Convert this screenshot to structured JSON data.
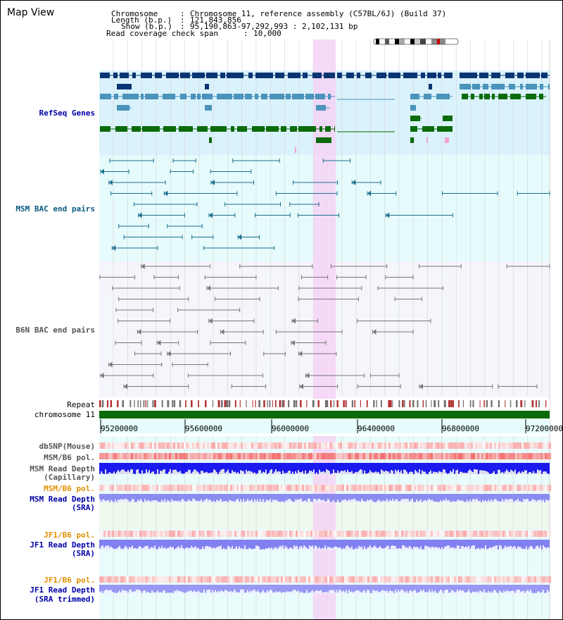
{
  "app": {
    "title": "Map View"
  },
  "header": {
    "chromosome_label": "Chromosome",
    "chromosome_value": "Chromosome 11, reference assembly (C57BL/6J) (Build 37)",
    "length_label": "Length (b.p.)",
    "length_value": "121,843,856",
    "show_label": "Show (b.p.)",
    "show_value": "95,190,863-97,292,993 : 2,102,131 bp",
    "coverage_label": "Read coverage check span",
    "coverage_value": "10,000"
  },
  "tracks": {
    "refseq": "RefSeq Genes",
    "msm_bac": "MSM BAC end pairs",
    "b6n_bac": "B6N BAC end pairs",
    "repeat": "Repeat",
    "chromosome": "chromosome 11",
    "dbsnp": "dbSNP(Mouse)",
    "msm_b6_pol_1": "MSM/B6 pol.",
    "msm_depth_cap_1": "MSM Read Depth",
    "msm_depth_cap_2": "(Capillary)",
    "msm_b6_pol_2": "MSM/B6 pol.",
    "msm_depth_sra_1": "MSM Read Depth",
    "msm_depth_sra_2": "(SRA)",
    "jf1_b6_pol_1": "JF1/B6 pol.",
    "jf1_depth_sra_1": "JF1 Read Depth",
    "jf1_depth_sra_2": "(SRA)",
    "jf1_b6_pol_2": "JF1/B6 pol.",
    "jf1_depth_trim_1": "JF1 Read Depth",
    "jf1_depth_trim_2": "(SRA trimmed)"
  },
  "ruler": {
    "ticks": [
      "95200000",
      "95600000",
      "96000000",
      "96400000",
      "96800000",
      "97200000"
    ]
  },
  "colors": {
    "refseq_bg": "#daf2fb",
    "msm_bg": "#e6fbfb",
    "b6n_bg": "#f4f6fb",
    "highlight": "#f5d3f5",
    "dark_blue": "#0a3573",
    "mid_blue": "#4a93bb",
    "green": "#0b6b0b",
    "chromosome_bar": "#0b6b0b",
    "label_blue": "#0000aa",
    "label_teal": "#0a5a80",
    "label_gray": "#555555",
    "label_orange": "#e29000"
  },
  "icons": [
    "chromosome-ideogram-icon"
  ]
}
